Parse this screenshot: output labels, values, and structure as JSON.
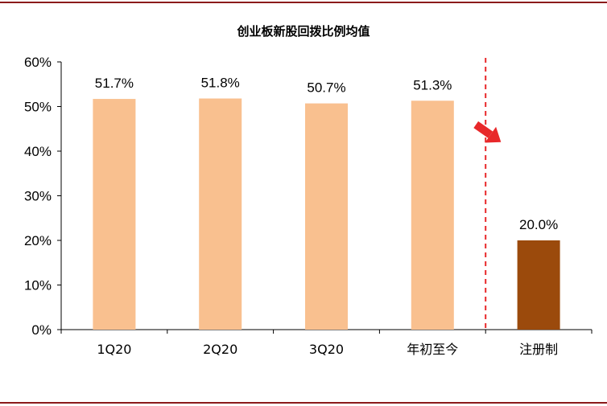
{
  "chart_data": {
    "type": "bar",
    "title": "创业板新股回拨比例均值",
    "categories": [
      "1Q20",
      "2Q20",
      "3Q20",
      "年初至今",
      "注册制"
    ],
    "values": [
      51.7,
      51.8,
      50.7,
      51.3,
      20.0
    ],
    "data_labels": [
      "51.7%",
      "51.8%",
      "50.7%",
      "51.3%",
      "20.0%"
    ],
    "ylim": [
      0,
      60
    ],
    "yticks": [
      "0%",
      "10%",
      "20%",
      "30%",
      "40%",
      "50%",
      "60%"
    ],
    "grid": false,
    "legend": "none",
    "colors": {
      "bar_default": "#f9c08f",
      "bar_highlight": "#9b4a0c",
      "divider": "#e8282a",
      "arrow": "#e8282a",
      "frame_rule": "#8b1a1a"
    },
    "highlight_index": 4,
    "annotations": [
      {
        "kind": "dashed-divider-with-arrow"
      }
    ]
  }
}
